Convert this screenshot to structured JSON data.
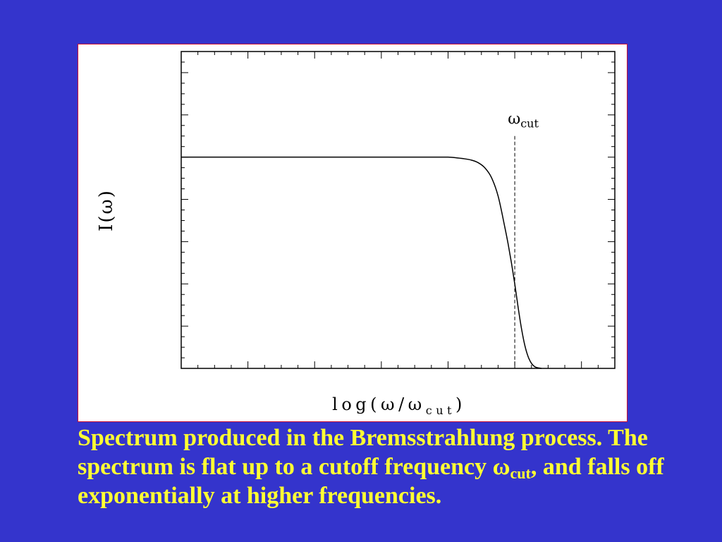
{
  "colors": {
    "background": "#3434CC",
    "caption": "#FFFF33",
    "panel": "#FFFFFF",
    "panel_border": "#CC1133",
    "ink": "#000000"
  },
  "caption": {
    "text_start": "Spectrum produced in the Bremsstrahlung process. The spectrum is flat up to a cutoff frequency ",
    "symbol": "ω",
    "subscript": "cut",
    "text_end": ", and falls off exponentially at higher frequencies."
  },
  "chart_data": {
    "type": "line",
    "xlabel": {
      "main": "log(ω/ω",
      "sub": "cut",
      "close": ")"
    },
    "ylabel": "I(ω)",
    "xlim": [
      -5,
      1.5
    ],
    "ylim": [
      0,
      7.5
    ],
    "x_ticks": {
      "major_step": 1,
      "minor_step": 0.25,
      "labels": false
    },
    "y_ticks": {
      "major_step": 1,
      "minor_step": 0.25,
      "labels": false
    },
    "ticks": {
      "bottom": true,
      "top": true,
      "left": true,
      "right": true
    },
    "grid": false,
    "legend": false,
    "series": [
      {
        "color": "#000000",
        "x": [
          -5,
          -1,
          -0.85,
          -0.75,
          -0.65,
          -0.55,
          -0.45,
          -0.35,
          -0.25,
          -0.15,
          -0.1,
          -0.05,
          0,
          0.05,
          0.1,
          0.15,
          0.2,
          0.25,
          0.3,
          0.4
        ],
        "y": [
          5,
          5,
          4.98,
          4.96,
          4.93,
          4.87,
          4.75,
          4.52,
          4.08,
          3.35,
          2.95,
          2.5,
          2.0,
          1.45,
          0.95,
          0.55,
          0.28,
          0.12,
          0.04,
          0
        ]
      }
    ],
    "cutoff_marker": {
      "x": 0,
      "y_top": 5.5,
      "dashed": true,
      "label": {
        "main": "ω",
        "sub": "cut"
      }
    }
  }
}
